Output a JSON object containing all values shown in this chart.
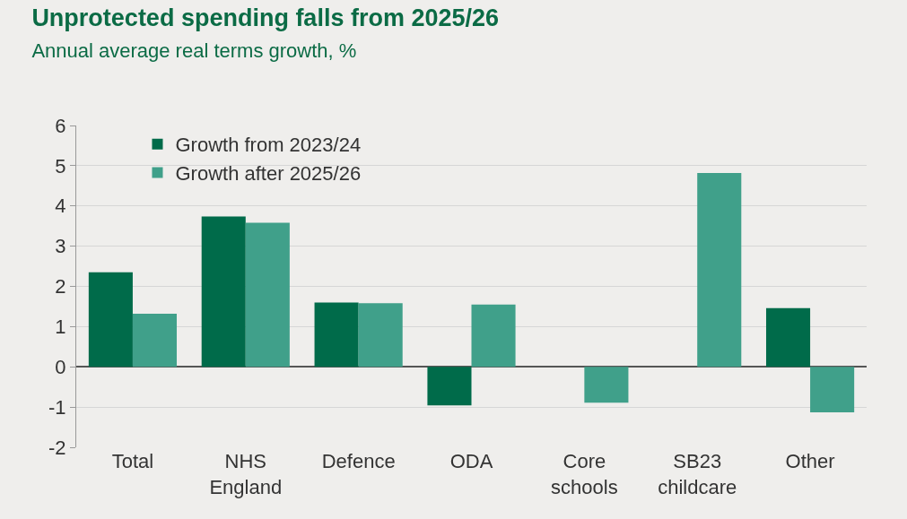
{
  "chart_data": {
    "type": "bar",
    "title": "Unprotected spending falls from 2025/26",
    "subtitle": "Annual average real terms growth, %",
    "categories": [
      "Total",
      "NHS England",
      "Defence",
      "ODA",
      "Core schools",
      "SB23 childcare",
      "Other"
    ],
    "series": [
      {
        "name": "Growth from 2023/24",
        "color": "#006b4a",
        "values": [
          2.35,
          3.74,
          1.6,
          -0.96,
          null,
          null,
          1.46
        ]
      },
      {
        "name": "Growth after 2025/26",
        "color": "#40a08a",
        "values": [
          1.32,
          3.58,
          1.58,
          1.55,
          -0.89,
          4.82,
          -1.13
        ]
      }
    ],
    "ylim": [
      -2,
      6
    ],
    "yticks": [
      -2,
      -1,
      0,
      1,
      2,
      3,
      4,
      5,
      6
    ],
    "grid": "y",
    "legend": "top left"
  }
}
